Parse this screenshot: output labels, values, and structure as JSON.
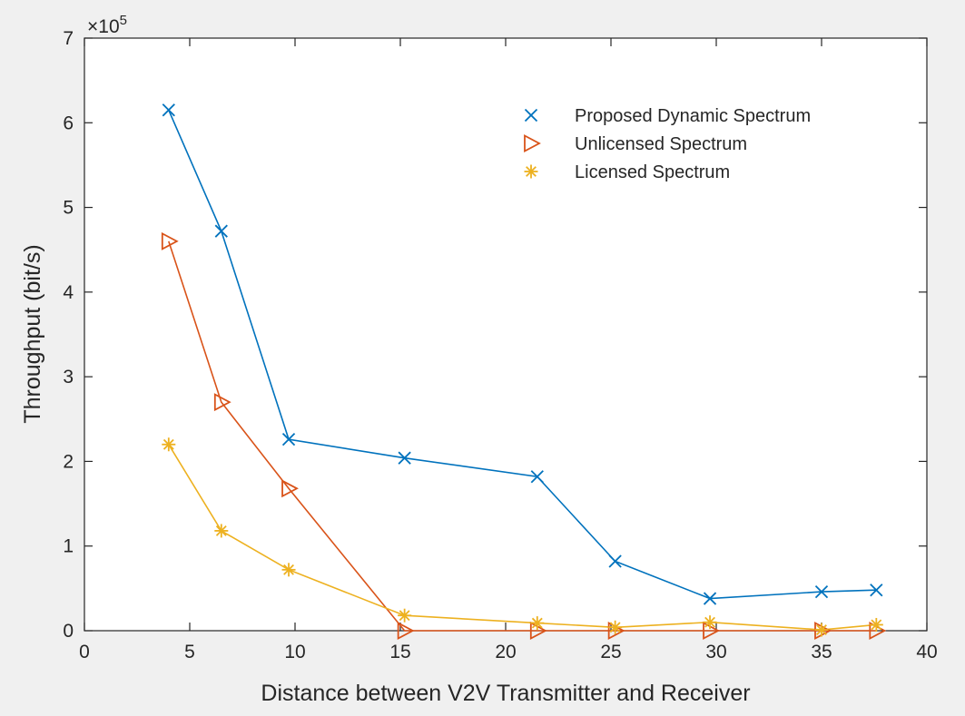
{
  "chart_data": {
    "type": "line",
    "title": "",
    "xlabel": "Distance between V2V Transmitter and Receiver",
    "ylabel": "Throughput (bit/s)",
    "y_multiplier_label": "×10",
    "y_multiplier_exponent": "5",
    "xlim": [
      0,
      40
    ],
    "ylim": [
      0,
      7
    ],
    "x_ticks": [
      "0",
      "5",
      "10",
      "15",
      "20",
      "25",
      "30",
      "35",
      "40"
    ],
    "y_ticks": [
      "0",
      "1",
      "2",
      "3",
      "4",
      "5",
      "6",
      "7"
    ],
    "grid": false,
    "legend_position": "top-right",
    "series": [
      {
        "name": "Proposed Dynamic Spectrum",
        "color": "#0072bd",
        "marker": "x",
        "x": [
          4,
          6.5,
          9.7,
          15.2,
          21.5,
          25.2,
          29.7,
          35,
          37.6
        ],
        "y": [
          6.15,
          4.72,
          2.26,
          2.04,
          1.82,
          0.82,
          0.38,
          0.46,
          0.48
        ]
      },
      {
        "name": "Unlicensed Spectrum",
        "color": "#d95319",
        "marker": "triangle-right",
        "x": [
          4,
          6.5,
          9.7,
          15.2,
          21.5,
          25.2,
          29.7,
          35,
          37.6
        ],
        "y": [
          4.6,
          2.7,
          1.68,
          0,
          0,
          0,
          0,
          0,
          0
        ]
      },
      {
        "name": "Licensed Spectrum",
        "color": "#edb120",
        "marker": "asterisk",
        "x": [
          4,
          6.5,
          9.7,
          15.2,
          21.5,
          25.2,
          29.7,
          35,
          37.6
        ],
        "y": [
          2.2,
          1.18,
          0.72,
          0.18,
          0.09,
          0.04,
          0.1,
          0.01,
          0.07
        ]
      }
    ]
  }
}
